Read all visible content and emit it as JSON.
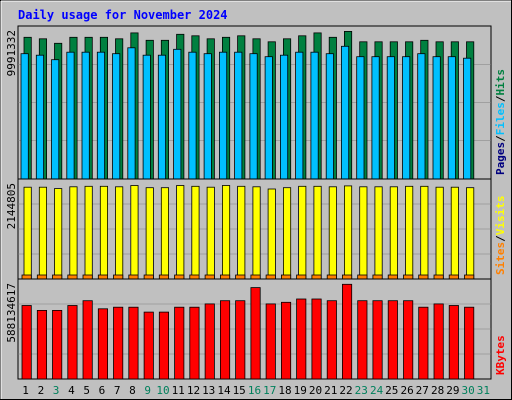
{
  "chart_data": {
    "title": "Daily usage for November 2024",
    "x_categories": [
      "1",
      "2",
      "3",
      "4",
      "5",
      "6",
      "7",
      "8",
      "9",
      "10",
      "11",
      "12",
      "13",
      "14",
      "15",
      "16",
      "17",
      "18",
      "19",
      "20",
      "21",
      "22",
      "23",
      "24",
      "25",
      "26",
      "27",
      "28",
      "29",
      "30",
      "31"
    ],
    "weekend_days": [
      "3",
      "9",
      "10",
      "16",
      "17",
      "23",
      "24",
      "30",
      "31"
    ],
    "colors": {
      "hits": "#008040",
      "files": "#00c0ff",
      "pages": "#00007f",
      "visits": "#ffff00",
      "sites": "#ff8000",
      "kbytes": "#ff0000",
      "title": "#0000ff",
      "plot_background": "#c0c0c0",
      "frame": "#a0a0a0",
      "weekday_label": "#000000",
      "weekend_label": "#00805c"
    },
    "panels": [
      {
        "type": "bar",
        "scale_label": "9991332",
        "ylim": [
          0,
          9991332
        ],
        "legend": [
          "Pages",
          "Files",
          "Hits"
        ],
        "series": [
          {
            "name": "Hits",
            "values": [
              9500000,
              9400000,
              9100000,
              9500000,
              9500000,
              9500000,
              9400000,
              9800000,
              9300000,
              9300000,
              9700000,
              9600000,
              9400000,
              9500000,
              9600000,
              9400000,
              9200000,
              9400000,
              9600000,
              9800000,
              9500000,
              9900000,
              9200000,
              9200000,
              9200000,
              9200000,
              9300000,
              9200000,
              9200000,
              9200000,
              null
            ]
          },
          {
            "name": "Files",
            "values": [
              8400000,
              8300000,
              8000000,
              8500000,
              8500000,
              8500000,
              8400000,
              8800000,
              8300000,
              8300000,
              8700000,
              8500000,
              8400000,
              8500000,
              8500000,
              8400000,
              8200000,
              8300000,
              8500000,
              8500000,
              8400000,
              8900000,
              8200000,
              8200000,
              8200000,
              8200000,
              8400000,
              8200000,
              8200000,
              8100000,
              null
            ]
          },
          {
            "name": "Pages",
            "values": [
              0,
              0,
              0,
              0,
              0,
              0,
              0,
              0,
              0,
              0,
              0,
              0,
              0,
              0,
              0,
              0,
              0,
              0,
              0,
              0,
              0,
              0,
              0,
              0,
              0,
              0,
              0,
              0,
              0,
              0,
              null
            ]
          }
        ]
      },
      {
        "type": "bar",
        "scale_label": "2144805",
        "ylim": [
          0,
          2144805
        ],
        "legend": [
          "Sites",
          "Visits"
        ],
        "series": [
          {
            "name": "Visits",
            "values": [
              2050000,
              2050000,
              2020000,
              2060000,
              2070000,
              2070000,
              2060000,
              2090000,
              2040000,
              2040000,
              2090000,
              2070000,
              2050000,
              2090000,
              2070000,
              2060000,
              2010000,
              2040000,
              2070000,
              2070000,
              2060000,
              2080000,
              2060000,
              2060000,
              2060000,
              2070000,
              2070000,
              2050000,
              2050000,
              2040000,
              null
            ]
          },
          {
            "name": "Sites",
            "values": [
              90000,
              90000,
              90000,
              90000,
              90000,
              90000,
              90000,
              90000,
              90000,
              90000,
              90000,
              90000,
              90000,
              90000,
              90000,
              90000,
              90000,
              90000,
              90000,
              90000,
              90000,
              90000,
              90000,
              90000,
              90000,
              90000,
              90000,
              90000,
              90000,
              90000,
              null
            ]
          }
        ]
      },
      {
        "type": "bar",
        "scale_label": "588134617",
        "ylim": [
          0,
          588134617
        ],
        "legend": [
          "KBytes"
        ],
        "series": [
          {
            "name": "KBytes",
            "values": [
              450000000,
              420000000,
              420000000,
              450000000,
              480000000,
              430000000,
              440000000,
              440000000,
              410000000,
              410000000,
              440000000,
              440000000,
              460000000,
              480000000,
              480000000,
              560000000,
              460000000,
              470000000,
              490000000,
              490000000,
              480000000,
              580000000,
              480000000,
              480000000,
              480000000,
              480000000,
              440000000,
              460000000,
              450000000,
              440000000,
              null
            ]
          }
        ]
      }
    ]
  }
}
